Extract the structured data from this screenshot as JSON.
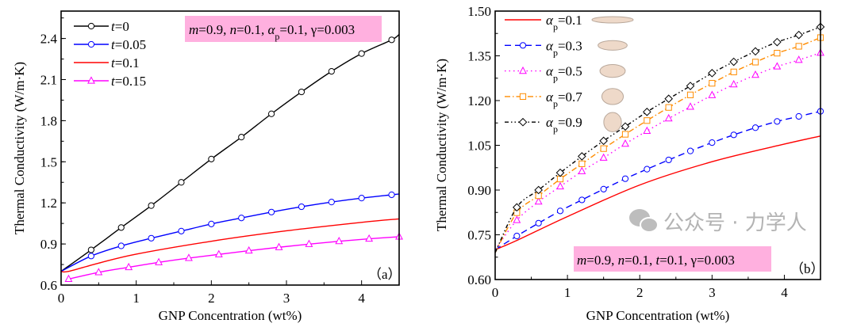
{
  "chart_data": [
    {
      "type": "line",
      "panel_label": "（a）",
      "xlabel": "GNP Concentration (wt%)",
      "ylabel": "Thermal Conductivity (W/m·K)",
      "xlim": [
        0,
        4.5
      ],
      "ylim": [
        0.6,
        2.6
      ],
      "xticks": [
        "0",
        "1",
        "2",
        "3",
        "4"
      ],
      "yticks": [
        "0.6",
        "0.9",
        "1.2",
        "1.5",
        "1.8",
        "2.1",
        "2.4"
      ],
      "annotation": [
        {
          "text": "m",
          "italic": true
        },
        {
          "text": "=0.9, "
        },
        {
          "text": "n",
          "italic": true
        },
        {
          "text": "=0.1, "
        },
        {
          "text": "α",
          "italic": true
        },
        {
          "text": "p",
          "sub": true
        },
        {
          "text": "=0.1, γ=0.003"
        }
      ],
      "annotation_color": "#FFB0DF",
      "series": [
        {
          "name": "t=0",
          "symbol": "t",
          "value": "=0",
          "color": "#000000",
          "marker": "circle",
          "dash": "",
          "x": [
            0,
            0.4,
            0.8,
            1.2,
            1.6,
            2.0,
            2.4,
            2.8,
            3.2,
            3.6,
            4.0,
            4.4,
            4.5
          ],
          "y": [
            0.7,
            0.857,
            1.02,
            1.18,
            1.35,
            1.52,
            1.68,
            1.85,
            2.01,
            2.16,
            2.29,
            2.39,
            2.43
          ],
          "marker_idx": [
            1,
            11
          ]
        },
        {
          "name": "t=0.05",
          "symbol": "t",
          "value": "=0.05",
          "color": "#0000FF",
          "marker": "circle",
          "dash": "",
          "x": [
            0,
            0.4,
            0.8,
            1.2,
            1.6,
            2.0,
            2.4,
            2.8,
            3.2,
            3.6,
            4.0,
            4.4,
            4.5
          ],
          "y": [
            0.7,
            0.812,
            0.886,
            0.942,
            0.994,
            1.046,
            1.09,
            1.133,
            1.172,
            1.206,
            1.235,
            1.259,
            1.265
          ],
          "marker_idx": [
            1,
            11
          ]
        },
        {
          "name": "t=0.1",
          "symbol": "t",
          "value": "=0.1",
          "color": "#FF0000",
          "marker": "none",
          "dash": "",
          "x": [
            0,
            0.1,
            0.5,
            1.0,
            2.0,
            3.0,
            4.0,
            4.5
          ],
          "y": [
            0.7,
            0.7,
            0.76,
            0.826,
            0.92,
            0.996,
            1.058,
            1.083
          ],
          "marker_idx": [
            0,
            -1
          ]
        },
        {
          "name": "t=0.15",
          "symbol": "t",
          "value": "=0.15",
          "color": "#FF00FF",
          "marker": "triangle",
          "dash": "",
          "x": [
            0.1,
            0.5,
            0.9,
            1.3,
            1.7,
            2.1,
            2.5,
            2.9,
            3.3,
            3.7,
            4.1,
            4.5
          ],
          "y": [
            0.644,
            0.693,
            0.73,
            0.766,
            0.797,
            0.824,
            0.851,
            0.876,
            0.899,
            0.92,
            0.938,
            0.953
          ],
          "marker_idx": [
            0,
            11
          ]
        }
      ]
    },
    {
      "type": "line",
      "panel_label": "（b）",
      "xlabel": "GNP Concentration (wt%)",
      "ylabel": "Thermal Conductivity (W/m·K)",
      "xlim": [
        0,
        4.5
      ],
      "ylim": [
        0.6,
        1.5
      ],
      "xticks": [
        "0",
        "1",
        "2",
        "3",
        "4"
      ],
      "yticks": [
        "0.60",
        "0.75",
        "0.90",
        "1.05",
        "1.20",
        "1.35",
        "1.50"
      ],
      "annotation": [
        {
          "text": "m",
          "italic": true
        },
        {
          "text": "=0.9, "
        },
        {
          "text": "n",
          "italic": true
        },
        {
          "text": "=0.1, "
        },
        {
          "text": "t",
          "italic": true
        },
        {
          "text": "=0.1, γ=0.003"
        }
      ],
      "annotation_color": "#FFB0DF",
      "series": [
        {
          "name": "αp=0.1",
          "symbol": "α",
          "sub": "p",
          "value": "=0.1",
          "color": "#FF0000",
          "marker": "none",
          "dash": "",
          "shape_ratio": 0.1,
          "x": [
            0,
            0.3,
            1,
            2,
            3,
            4,
            4.5
          ],
          "y": [
            0.7,
            0.731,
            0.811,
            0.917,
            0.995,
            1.054,
            1.081
          ],
          "marker_idx": [
            0,
            -1
          ]
        },
        {
          "name": "αp=0.3",
          "symbol": "α",
          "sub": "p",
          "value": "=0.3",
          "color": "#0000FF",
          "marker": "circle",
          "dash": "8,5",
          "shape_ratio": 0.3,
          "x": [
            0,
            0.3,
            0.6,
            0.9,
            1.2,
            1.5,
            1.8,
            2.1,
            2.4,
            2.7,
            3.0,
            3.3,
            3.6,
            3.9,
            4.2,
            4.5
          ],
          "y": [
            0.7,
            0.746,
            0.789,
            0.83,
            0.867,
            0.903,
            0.938,
            0.97,
            1.001,
            1.031,
            1.059,
            1.085,
            1.109,
            1.13,
            1.147,
            1.164
          ],
          "marker_idx": [
            1,
            15
          ]
        },
        {
          "name": "αp=0.5",
          "symbol": "α",
          "sub": "p",
          "value": "=0.5",
          "color": "#FF00FF",
          "marker": "triangle",
          "dash": "1.5,4",
          "shape_ratio": 0.5,
          "x": [
            0,
            0.3,
            0.6,
            0.9,
            1.2,
            1.5,
            1.8,
            2.1,
            2.4,
            2.7,
            3.0,
            3.3,
            3.6,
            3.9,
            4.2,
            4.5
          ],
          "y": [
            0.7,
            0.799,
            0.861,
            0.912,
            0.963,
            1.008,
            1.055,
            1.098,
            1.14,
            1.179,
            1.218,
            1.254,
            1.286,
            1.314,
            1.336,
            1.36
          ],
          "marker_idx": [
            1,
            15
          ]
        },
        {
          "name": "αp=0.7",
          "symbol": "α",
          "sub": "p",
          "value": "=0.7",
          "color": "#FF8C00",
          "marker": "square",
          "dash": "7,3,1.5,3",
          "shape_ratio": 0.7,
          "x": [
            0,
            0.3,
            0.6,
            0.9,
            1.2,
            1.5,
            1.8,
            2.1,
            2.4,
            2.7,
            3.0,
            3.3,
            3.6,
            3.9,
            4.2,
            4.5
          ],
          "y": [
            0.69,
            0.824,
            0.881,
            0.937,
            0.988,
            1.039,
            1.087,
            1.133,
            1.177,
            1.219,
            1.258,
            1.296,
            1.329,
            1.359,
            1.382,
            1.411
          ],
          "marker_idx": [
            1,
            15
          ]
        },
        {
          "name": "αp=0.9",
          "symbol": "α",
          "sub": "p",
          "value": "=0.9",
          "color": "#000000",
          "marker": "diamond",
          "dash": "5,3,1.5,3,1.5,3",
          "shape_ratio": 0.9,
          "x": [
            0,
            0.3,
            0.6,
            0.9,
            1.2,
            1.5,
            1.8,
            2.1,
            2.4,
            2.7,
            3.0,
            3.3,
            3.6,
            3.9,
            4.2,
            4.5
          ],
          "y": [
            0.69,
            0.842,
            0.9,
            0.958,
            1.013,
            1.065,
            1.113,
            1.162,
            1.206,
            1.249,
            1.292,
            1.33,
            1.365,
            1.396,
            1.42,
            1.447
          ],
          "marker_idx": [
            1,
            15
          ]
        }
      ]
    }
  ],
  "watermark": "公众号 · 力学人"
}
